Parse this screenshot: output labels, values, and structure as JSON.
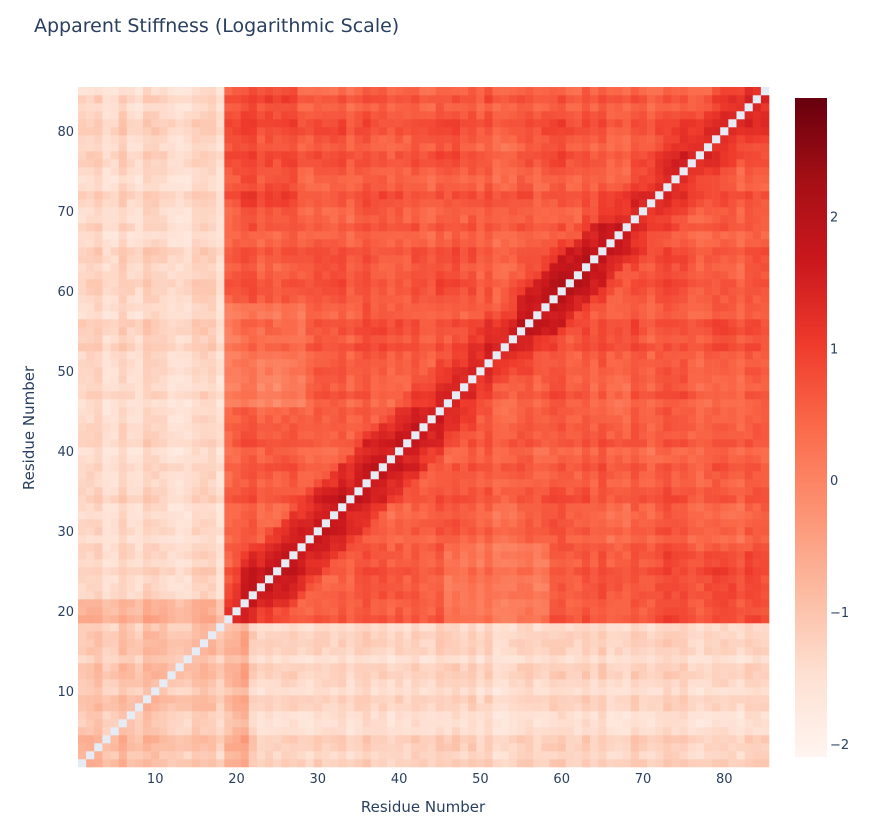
{
  "chart_data": {
    "type": "heatmap",
    "title": "Apparent Stiffness (Logarithmic Scale)",
    "xlabel": "Residue Number",
    "ylabel": "Residue Number",
    "x_range": [
      1,
      85
    ],
    "y_range": [
      1,
      85
    ],
    "x_ticks": [
      10,
      20,
      30,
      40,
      50,
      60,
      70,
      80
    ],
    "y_ticks": [
      10,
      20,
      30,
      40,
      50,
      60,
      70,
      80
    ],
    "grid": false,
    "diagonal": "no value (blank cells along diagonal)",
    "colorscale": {
      "name": "Reds",
      "stops": [
        "#fff5f0",
        "#fee0d2",
        "#fcbba1",
        "#fc9272",
        "#fb6a4a",
        "#ef3b2c",
        "#cb181d",
        "#a50f15",
        "#67000d"
      ],
      "zmin": -2.1,
      "zmax": 2.9,
      "ticks": [
        -2,
        -1,
        0,
        1,
        2
      ],
      "tick_labels": [
        "−2",
        "−1",
        "0",
        "1",
        "2"
      ],
      "position": "right"
    },
    "regions": [
      {
        "residues_x": [
          1,
          18
        ],
        "residues_y": [
          19,
          85
        ],
        "approx_log_value": -1.4
      },
      {
        "residues_x": [
          1,
          85
        ],
        "residues_y": [
          1,
          18
        ],
        "approx_log_value": -1.4
      },
      {
        "residues_x": [
          1,
          18
        ],
        "residues_y": [
          1,
          18
        ],
        "approx_log_value": -0.9
      },
      {
        "residues_x": [
          19,
          85
        ],
        "residues_y": [
          19,
          85
        ],
        "approx_log_value": 0.7
      },
      {
        "near_diagonal_band": [
          21,
          66
        ],
        "approx_log_value": 1.9
      }
    ]
  }
}
